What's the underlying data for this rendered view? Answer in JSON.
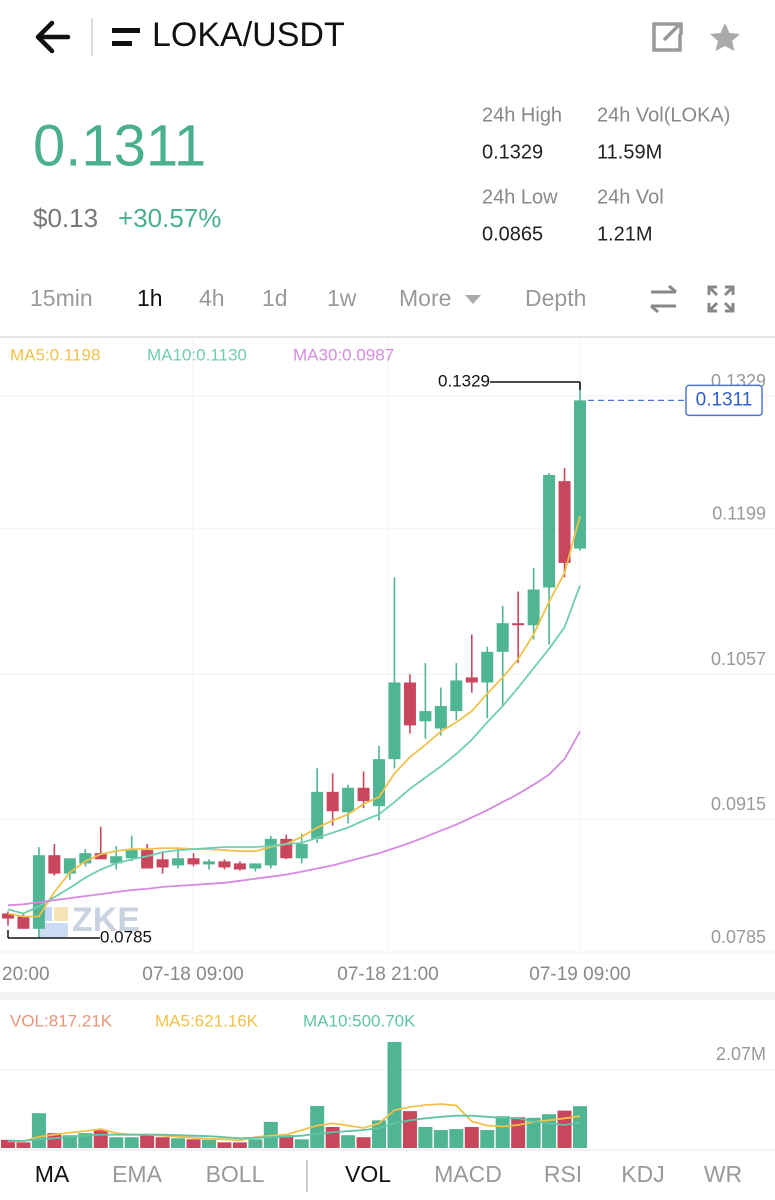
{
  "header": {
    "pair": "LOKA/USDT"
  },
  "price": {
    "last": "0.1311",
    "usd": "$0.13",
    "change": "+30.57%"
  },
  "stats": [
    {
      "label": "24h High",
      "value": "0.1329"
    },
    {
      "label": "24h Vol(LOKA)",
      "value": "11.59M"
    },
    {
      "label": "24h Low",
      "value": "0.0865"
    },
    {
      "label": "24h Vol",
      "value": "1.21M"
    }
  ],
  "intervals": [
    "15min",
    "1h",
    "4h",
    "1d",
    "1w",
    "More",
    "Depth"
  ],
  "active_interval": 1,
  "chart_data": {
    "type": "candlestick",
    "up_color": "#4fb593",
    "down_color": "#c8475c",
    "watermark": "ZKE",
    "ylim": [
      0.0785,
      0.1329
    ],
    "yticks": [
      0.1329,
      0.1199,
      0.1057,
      0.0915,
      0.0785
    ],
    "x_labels": [
      "20:00",
      "07-18 09:00",
      "07-18 21:00",
      "07-19 09:00"
    ],
    "max_marker": 0.1329,
    "min_marker": 0.0785,
    "last_price": 0.1311,
    "candles": [
      [
        0.0809,
        0.0811,
        0.0797,
        0.0804
      ],
      [
        0.0806,
        0.0809,
        0.0795,
        0.0794
      ],
      [
        0.0794,
        0.0874,
        0.0785,
        0.0866
      ],
      [
        0.0866,
        0.0877,
        0.0846,
        0.0848
      ],
      [
        0.0848,
        0.0862,
        0.0842,
        0.0863
      ],
      [
        0.0858,
        0.0872,
        0.0855,
        0.0868
      ],
      [
        0.0868,
        0.0894,
        0.0862,
        0.0862
      ],
      [
        0.0858,
        0.0875,
        0.0852,
        0.0865
      ],
      [
        0.0863,
        0.0885,
        0.086,
        0.0871
      ],
      [
        0.0871,
        0.0877,
        0.0853,
        0.0853
      ],
      [
        0.0862,
        0.0869,
        0.0848,
        0.0854
      ],
      [
        0.0856,
        0.0872,
        0.0853,
        0.0863
      ],
      [
        0.0863,
        0.0868,
        0.0855,
        0.0857
      ],
      [
        0.0857,
        0.0862,
        0.0852,
        0.086
      ],
      [
        0.086,
        0.0862,
        0.0852,
        0.0854
      ],
      [
        0.0858,
        0.086,
        0.0851,
        0.0852
      ],
      [
        0.0853,
        0.0858,
        0.085,
        0.0858
      ],
      [
        0.0856,
        0.0885,
        0.0853,
        0.0882
      ],
      [
        0.0882,
        0.0886,
        0.0862,
        0.0863
      ],
      [
        0.0863,
        0.0887,
        0.0858,
        0.0877
      ],
      [
        0.0882,
        0.0951,
        0.0878,
        0.0928
      ],
      [
        0.0928,
        0.0946,
        0.0895,
        0.0909
      ],
      [
        0.0908,
        0.0935,
        0.0897,
        0.0932
      ],
      [
        0.0932,
        0.0948,
        0.0912,
        0.0919
      ],
      [
        0.0914,
        0.0973,
        0.09,
        0.096
      ],
      [
        0.096,
        0.1138,
        0.0951,
        0.1035
      ],
      [
        0.1035,
        0.1043,
        0.0985,
        0.0993
      ],
      [
        0.0997,
        0.1054,
        0.098,
        0.1007
      ],
      [
        0.099,
        0.103,
        0.0983,
        0.1012
      ],
      [
        0.1007,
        0.1054,
        0.0998,
        0.1037
      ],
      [
        0.104,
        0.1082,
        0.1025,
        0.1035
      ],
      [
        0.1035,
        0.107,
        0.1,
        0.1065
      ],
      [
        0.1065,
        0.111,
        0.1012,
        0.1093
      ],
      [
        0.1093,
        0.1124,
        0.1054,
        0.1091
      ],
      [
        0.1091,
        0.1147,
        0.1077,
        0.1126
      ],
      [
        0.1128,
        0.124,
        0.1072,
        0.1238
      ],
      [
        0.1232,
        0.1245,
        0.1138,
        0.1152
      ],
      [
        0.1166,
        0.1329,
        0.1164,
        0.1311
      ]
    ],
    "ma": [
      {
        "label": "MA5:0.1198",
        "color": "#f0c24a",
        "values": [
          0.0809,
          0.0806,
          0.0806,
          0.083,
          0.0849,
          0.086,
          0.0867,
          0.087,
          0.0872,
          0.0872,
          0.0873,
          0.0873,
          0.0872,
          0.0872,
          0.0871,
          0.087,
          0.087,
          0.0874,
          0.0877,
          0.0884,
          0.0893,
          0.09,
          0.0906,
          0.0916,
          0.0923,
          0.0946,
          0.0962,
          0.0974,
          0.0987,
          0.0996,
          0.1007,
          0.1024,
          0.104,
          0.1058,
          0.1082,
          0.1114,
          0.1142,
          0.1198
        ]
      },
      {
        "label": "MA10:0.1130",
        "color": "#6fcdb3",
        "values": [
          0.0813,
          0.0809,
          0.0816,
          0.0825,
          0.0834,
          0.0844,
          0.0852,
          0.0858,
          0.0862,
          0.0865,
          0.0869,
          0.0871,
          0.0872,
          0.0873,
          0.0874,
          0.0874,
          0.0874,
          0.0875,
          0.0877,
          0.0878,
          0.0883,
          0.0888,
          0.0893,
          0.09,
          0.0906,
          0.0918,
          0.0931,
          0.0942,
          0.0953,
          0.0965,
          0.0979,
          0.0996,
          0.1012,
          0.103,
          0.1049,
          0.1068,
          0.1089,
          0.113
        ]
      },
      {
        "label": "MA30:0.0987",
        "color": "#d48be0",
        "values": [
          0.0817,
          0.0818,
          0.082,
          0.0822,
          0.0824,
          0.0826,
          0.0828,
          0.083,
          0.0832,
          0.0833,
          0.0835,
          0.0836,
          0.0837,
          0.0838,
          0.0839,
          0.0841,
          0.0843,
          0.0845,
          0.0847,
          0.085,
          0.0853,
          0.0856,
          0.086,
          0.0864,
          0.0868,
          0.0873,
          0.0878,
          0.0884,
          0.089,
          0.0896,
          0.0903,
          0.091,
          0.0918,
          0.0926,
          0.0935,
          0.0945,
          0.096,
          0.0987
        ]
      }
    ],
    "volume": {
      "label": "VOL:817.21K",
      "label_color": "#e8957a",
      "ylim": [
        0,
        2.07
      ],
      "yticks": [
        {
          "value": 2.07,
          "label": "2.07M"
        }
      ],
      "values": [
        0.16,
        0.11,
        0.68,
        0.29,
        0.25,
        0.29,
        0.35,
        0.21,
        0.21,
        0.25,
        0.21,
        0.19,
        0.17,
        0.16,
        0.11,
        0.11,
        0.17,
        0.51,
        0.25,
        0.17,
        0.82,
        0.41,
        0.25,
        0.21,
        0.54,
        2.07,
        0.72,
        0.41,
        0.35,
        0.37,
        0.41,
        0.35,
        0.62,
        0.6,
        0.59,
        0.66,
        0.73,
        0.817
      ],
      "ma": [
        {
          "label": "MA5:621.16K",
          "color": "#f0c24a",
          "values": [
            0.13,
            0.13,
            0.22,
            0.26,
            0.3,
            0.33,
            0.37,
            0.29,
            0.26,
            0.26,
            0.24,
            0.22,
            0.2,
            0.18,
            0.17,
            0.15,
            0.21,
            0.24,
            0.26,
            0.35,
            0.44,
            0.48,
            0.44,
            0.39,
            0.48,
            0.74,
            0.8,
            0.84,
            0.86,
            0.83,
            0.52,
            0.44,
            0.42,
            0.45,
            0.51,
            0.54,
            0.58,
            0.621
          ]
        },
        {
          "label": "MA10:500.70K",
          "color": "#5fc4a8",
          "values": [
            0.13,
            0.14,
            0.17,
            0.19,
            0.22,
            0.24,
            0.26,
            0.26,
            0.26,
            0.26,
            0.26,
            0.25,
            0.24,
            0.23,
            0.21,
            0.19,
            0.2,
            0.21,
            0.22,
            0.24,
            0.28,
            0.31,
            0.33,
            0.35,
            0.39,
            0.48,
            0.54,
            0.58,
            0.61,
            0.63,
            0.63,
            0.61,
            0.59,
            0.58,
            0.52,
            0.48,
            0.45,
            0.5007
          ]
        }
      ]
    }
  },
  "indicators": [
    "MA",
    "EMA",
    "BOLL",
    "VOL",
    "MACD",
    "RSI",
    "KDJ",
    "WR"
  ],
  "active_indicators": [
    0,
    3
  ]
}
